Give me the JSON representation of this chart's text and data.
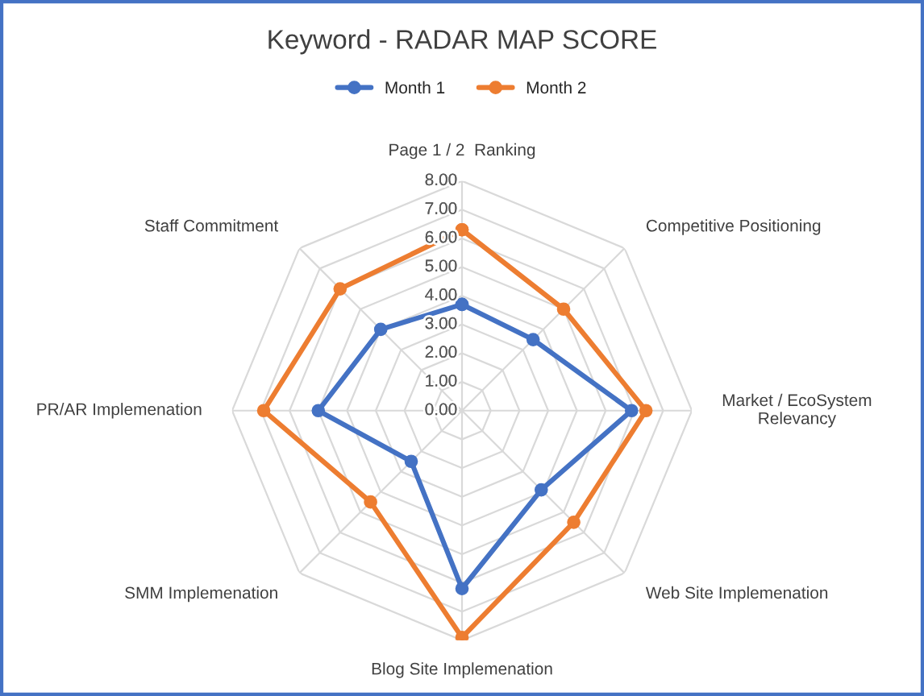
{
  "chart_data": {
    "type": "radar",
    "title": "Keyword - RADAR MAP SCORE",
    "categories": [
      "Page 1 / 2  Ranking",
      "Competitive Positioning",
      "Market / EcoSystem\nRelevancy",
      "Web Site Implemenation",
      "Blog Site Implemenation",
      "SMM Implemenation",
      "PR/AR Implemenation",
      "Staff Commitment"
    ],
    "series": [
      {
        "name": "Month 1",
        "color": "#4472c4",
        "values": [
          3.7,
          3.5,
          5.9,
          3.9,
          6.2,
          2.5,
          5.0,
          4.0
        ]
      },
      {
        "name": "Month 2",
        "color": "#ed7d31",
        "values": [
          6.3,
          5.0,
          6.4,
          5.5,
          7.9,
          4.5,
          6.9,
          6.0
        ]
      }
    ],
    "ylim": [
      0,
      8
    ],
    "yticks": [
      {
        "value": 0,
        "label": "0.00"
      },
      {
        "value": 1,
        "label": "1.00"
      },
      {
        "value": 2,
        "label": "2.00"
      },
      {
        "value": 3,
        "label": "3.00"
      },
      {
        "value": 4,
        "label": "4.00"
      },
      {
        "value": 5,
        "label": "5.00"
      },
      {
        "value": 6,
        "label": "6.00"
      },
      {
        "value": 7,
        "label": "7.00"
      },
      {
        "value": 8,
        "label": "8.00"
      }
    ],
    "grid": true,
    "legend": "top",
    "marker": "circle",
    "line_style": "solid"
  }
}
